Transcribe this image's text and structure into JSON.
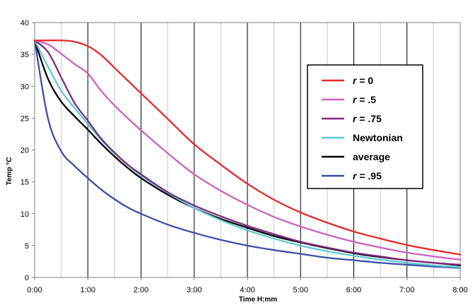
{
  "chart_data": {
    "type": "line",
    "title": "",
    "xlabel": "Time H:mm",
    "ylabel": "Temp °C",
    "xlim": [
      0,
      8
    ],
    "ylim": [
      0,
      40
    ],
    "x_tick_values": [
      0,
      1,
      2,
      3,
      4,
      5,
      6,
      7,
      8
    ],
    "x_tick_labels": [
      "0:00",
      "1:00",
      "2:00",
      "3:00",
      "4:00",
      "5:00",
      "6:00",
      "7:00",
      "8:00"
    ],
    "y_tick_values": [
      0,
      5,
      10,
      15,
      20,
      25,
      30,
      35,
      40
    ],
    "y_tick_labels": [
      "0",
      "5",
      "10",
      "15",
      "20",
      "25",
      "30",
      "35",
      "40"
    ],
    "grid": {
      "vertical_major": true,
      "vertical_minor": true,
      "horizontal": false
    },
    "legend_position": "right",
    "x": [
      0,
      0.25,
      0.5,
      0.75,
      1,
      1.25,
      1.5,
      1.75,
      2,
      2.5,
      3,
      3.5,
      4,
      4.5,
      5,
      5.5,
      6,
      6.5,
      7,
      7.5,
      8
    ],
    "series": [
      {
        "name": "r = 0",
        "legend_prefix": "r",
        "legend_suffix": " = 0",
        "color": "#e8282a",
        "values": [
          37.2,
          37.2,
          37.2,
          37.0,
          36.3,
          34.9,
          32.9,
          30.9,
          28.9,
          24.9,
          20.9,
          17.7,
          14.7,
          12.2,
          10.2,
          8.6,
          7.2,
          6.1,
          5.1,
          4.3,
          3.6
        ]
      },
      {
        "name": "r = .5",
        "legend_prefix": "r",
        "legend_suffix": " = .5",
        "color": "#cc60c0",
        "values": [
          37.2,
          36.6,
          35.1,
          33.5,
          32.0,
          29.3,
          27.0,
          25.0,
          23.1,
          19.5,
          16.2,
          13.6,
          11.4,
          9.5,
          8.0,
          6.7,
          5.6,
          4.7,
          3.9,
          3.3,
          2.8
        ]
      },
      {
        "name": "r = .75",
        "legend_prefix": "r",
        "legend_suffix": " = .75",
        "color": "#7d2a7d",
        "values": [
          37.2,
          35.4,
          31.4,
          27.4,
          24.6,
          21.8,
          19.6,
          17.7,
          16.2,
          13.4,
          11.3,
          9.6,
          8.1,
          6.8,
          5.6,
          4.7,
          3.9,
          3.3,
          2.7,
          2.3,
          2.0
        ]
      },
      {
        "name": "Newtonian",
        "legend_prefix": "",
        "legend_suffix": "Newtonian",
        "color": "#5ec8d4",
        "values": [
          37.2,
          33.1,
          29.3,
          26.6,
          24.1,
          21.6,
          19.5,
          17.7,
          16.0,
          13.3,
          10.9,
          9.0,
          7.4,
          6.1,
          5.0,
          4.1,
          3.4,
          2.8,
          2.3,
          1.9,
          1.6
        ]
      },
      {
        "name": "average",
        "legend_prefix": "",
        "legend_suffix": "average",
        "color": "#000000",
        "values": [
          37.2,
          31.2,
          27.6,
          25.3,
          23.2,
          21.0,
          19.0,
          17.2,
          15.6,
          13.0,
          10.9,
          9.2,
          7.8,
          6.5,
          5.5,
          4.6,
          3.8,
          3.2,
          2.7,
          2.3,
          1.9
        ]
      },
      {
        "name": "r = .95",
        "legend_prefix": "r",
        "legend_suffix": " = .95",
        "color": "#3b4ea8",
        "values": [
          37.2,
          25.0,
          19.8,
          17.5,
          15.6,
          13.8,
          12.3,
          11.0,
          10.0,
          8.3,
          7.0,
          5.9,
          5.0,
          4.3,
          3.7,
          3.1,
          2.7,
          2.3,
          2.0,
          1.7,
          1.5
        ]
      }
    ]
  }
}
